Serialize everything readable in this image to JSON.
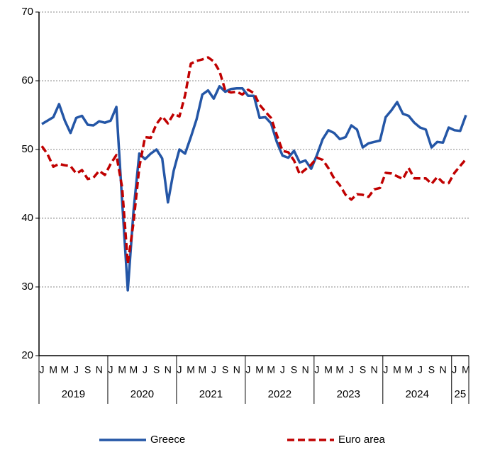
{
  "chart_data": {
    "type": "line",
    "categories": [
      "J",
      null,
      "M",
      null,
      "M",
      null,
      "J",
      null,
      "S",
      null,
      "N",
      null,
      "J",
      null,
      "M",
      null,
      "M",
      null,
      "J",
      null,
      "S",
      null,
      "N",
      null,
      "J",
      null,
      "M",
      null,
      "M",
      null,
      "J",
      null,
      "S",
      null,
      "N",
      null,
      "J",
      null,
      "M",
      null,
      "M",
      null,
      "J",
      null,
      "S",
      null,
      "N",
      null,
      "J",
      null,
      "M",
      null,
      "M",
      null,
      "J",
      null,
      "S",
      null,
      "N",
      null,
      "J",
      null,
      "M",
      null,
      "M",
      null,
      "J",
      null,
      "S",
      null,
      "N",
      null,
      "J",
      null,
      "M"
    ],
    "years": [
      "2019",
      "2020",
      "2021",
      "2022",
      "2023",
      "2024",
      "25"
    ],
    "series": [
      {
        "name": "Greece",
        "color": "#2456a6",
        "dashed": false,
        "values": [
          53.7,
          54.2,
          54.7,
          56.6,
          54.2,
          52.4,
          54.6,
          54.9,
          53.6,
          53.5,
          54.1,
          53.9,
          54.2,
          56.2,
          42.5,
          29.5,
          41.1,
          49.4,
          48.6,
          49.4,
          50.0,
          48.7,
          42.3,
          46.9,
          50.0,
          49.4,
          51.8,
          54.4,
          58.0,
          58.6,
          57.4,
          59.2,
          58.4,
          58.8,
          58.9,
          58.9,
          57.8,
          57.8,
          54.6,
          54.7,
          53.8,
          51.1,
          49.1,
          48.8,
          49.8,
          48.1,
          48.4,
          47.2,
          49.2,
          51.5,
          52.8,
          52.4,
          51.5,
          51.8,
          53.5,
          52.9,
          50.3,
          50.9,
          51.1,
          51.3,
          54.7,
          55.7,
          56.9,
          55.2,
          54.9,
          53.9,
          53.2,
          52.9,
          50.3,
          51.1,
          51.0,
          53.2,
          52.8,
          52.7,
          55.0
        ]
      },
      {
        "name": "Euro area",
        "color": "#c00000",
        "dashed": true,
        "values": [
          50.5,
          49.3,
          47.5,
          47.9,
          47.7,
          47.6,
          46.5,
          47.0,
          45.7,
          45.9,
          46.9,
          46.3,
          47.9,
          49.2,
          44.5,
          33.4,
          39.4,
          47.4,
          51.8,
          51.7,
          53.7,
          54.8,
          53.8,
          55.2,
          54.8,
          57.9,
          62.5,
          62.9,
          63.1,
          63.4,
          62.8,
          61.4,
          58.6,
          58.3,
          58.4,
          58.0,
          58.7,
          58.2,
          56.5,
          55.5,
          54.6,
          52.1,
          49.8,
          49.6,
          48.4,
          46.4,
          47.1,
          47.8,
          48.8,
          48.5,
          47.3,
          45.8,
          44.8,
          43.4,
          42.7,
          43.5,
          43.4,
          43.1,
          44.2,
          44.4,
          46.6,
          46.5,
          46.1,
          45.7,
          47.3,
          45.8,
          45.8,
          45.8,
          45.0,
          46.0,
          45.2,
          45.1,
          46.6,
          47.6,
          48.6
        ]
      }
    ],
    "ylim": [
      20,
      70
    ],
    "yticks": [
      20,
      30,
      40,
      50,
      60,
      70
    ],
    "grid": true
  }
}
